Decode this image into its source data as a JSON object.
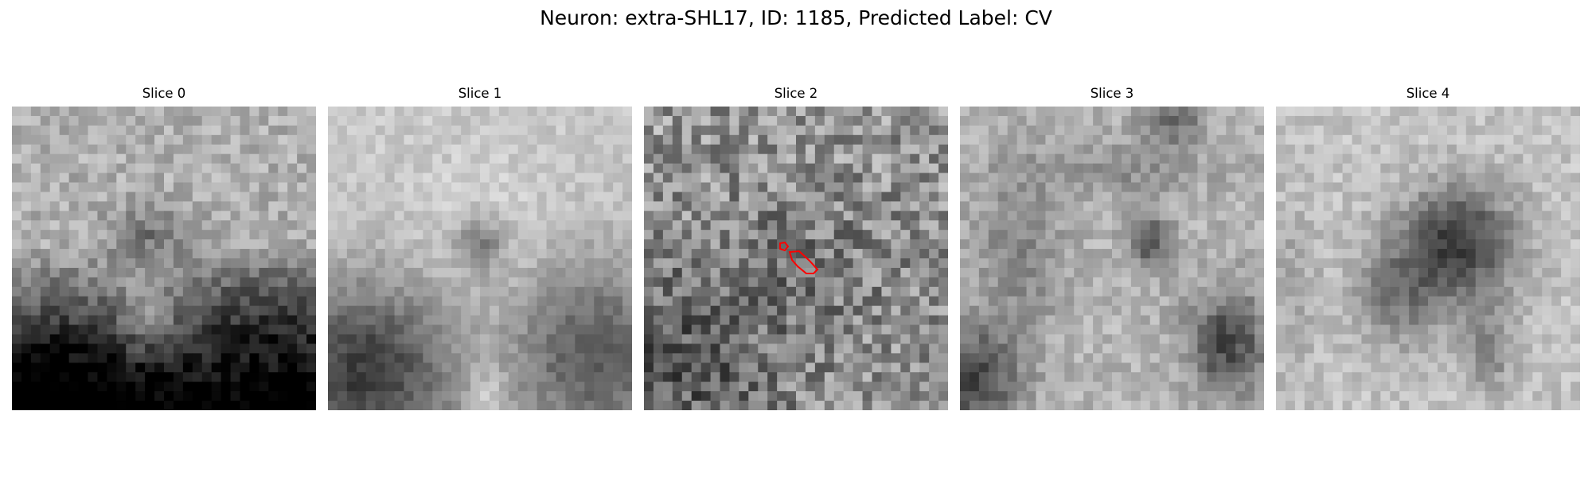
{
  "figure": {
    "title": "Neuron: extra-SHL17, ID: 1185, Predicted Label: CV"
  },
  "panels": [
    {
      "title": "Slice 0"
    },
    {
      "title": "Slice 1"
    },
    {
      "title": "Slice 2"
    },
    {
      "title": "Slice 3"
    },
    {
      "title": "Slice 4"
    }
  ],
  "colors": {
    "background": "#ffffff",
    "contour": "#ff0000",
    "colormap": "grayscale"
  }
}
